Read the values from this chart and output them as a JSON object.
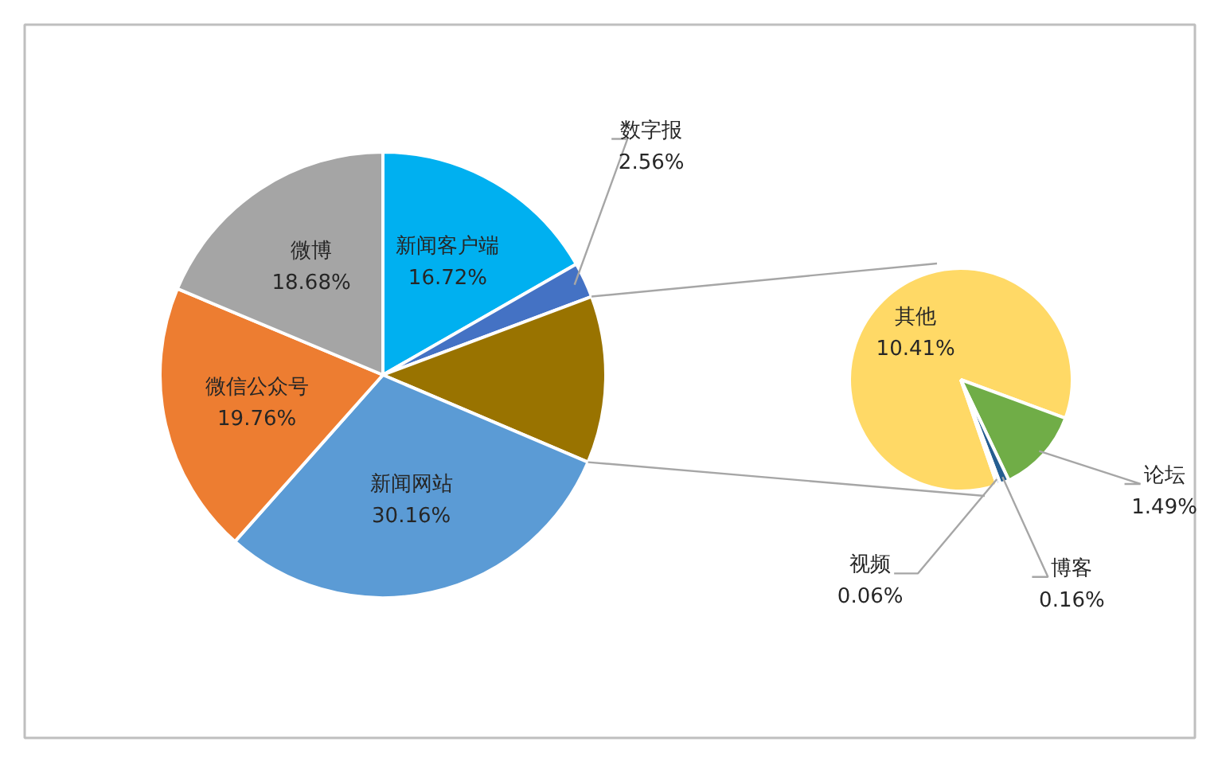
{
  "chart_data": [
    {
      "type": "pie",
      "categories": [
        "新闻客户端",
        "数字报",
        null,
        "新闻网站",
        "微信公众号",
        "微博"
      ],
      "values": [
        16.72,
        2.56,
        12.12,
        30.16,
        19.76,
        18.68
      ],
      "colors": [
        "#00b0f0",
        "#4472c4",
        "#997300",
        "#5b9bd5",
        "#ed7d31",
        "#a5a5a5"
      ],
      "value_labels": [
        "16.72%",
        "2.56%",
        null,
        "30.16%",
        "19.76%",
        "18.68%"
      ]
    },
    {
      "type": "pie",
      "categories": [
        "其他",
        "论坛",
        "博客",
        "视频"
      ],
      "values": [
        10.41,
        1.49,
        0.16,
        0.06
      ],
      "colors": [
        "#ffd966",
        "#70ad47",
        "#255e91",
        "#4472c4"
      ],
      "value_labels": [
        "10.41%",
        "1.49%",
        "0.16%",
        "0.06%"
      ]
    }
  ]
}
